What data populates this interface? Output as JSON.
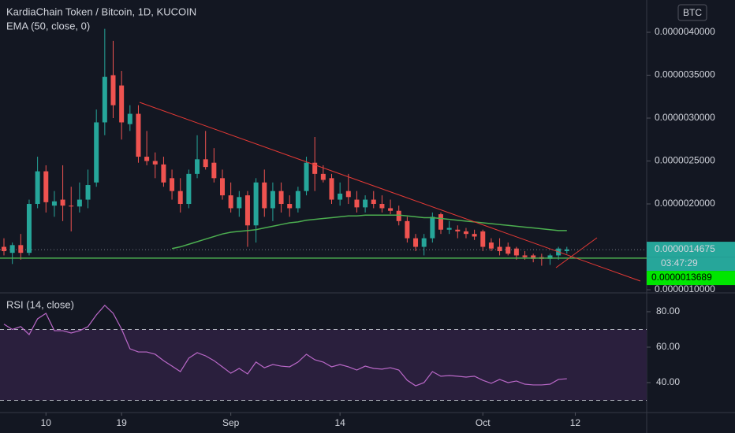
{
  "chart_data": [
    {
      "type": "candlestick",
      "title": "KardiaChain Token / Bitcoin, 1D, KUCOIN",
      "currency": "BTC",
      "open": [
        1.5e-06,
        1.43e-06,
        1.52e-06,
        1.43e-06,
        2e-06,
        2.38e-06,
        1.98e-06,
        2.05e-06,
        1.98e-06,
        1.97e-06,
        2.05e-06,
        2.25e-06,
        2.95e-06,
        3.5e-06,
        3.38e-06,
        2.93e-06,
        3.05e-06,
        2.55e-06,
        2.5e-06,
        2.46e-06,
        2.3e-06,
        2.15e-06,
        2e-06,
        2.35e-06,
        2.52e-06,
        2.48e-06,
        2.3e-06,
        2.1e-06,
        1.95e-06,
        2.1e-06,
        1.75e-06,
        2.25e-06,
        1.95e-06,
        2.15e-06,
        2e-06,
        1.95e-06,
        2.15e-06,
        2.48e-06,
        2.35e-06,
        2.3e-06,
        2.05e-06,
        2.15e-06,
        2.05e-06,
        1.96e-06,
        2.05e-06,
        2e-06,
        1.95e-06,
        1.92e-06,
        1.8e-06,
        1.6e-06,
        1.5e-06,
        1.6e-06,
        1.88e-06,
        1.7e-06,
        1.7e-06,
        1.68e-06,
        1.65e-06,
        1.68e-06,
        1.55e-06,
        1.5e-06,
        1.5e-06,
        1.48e-06,
        1.4e-06,
        1.4e-06,
        1.38e-06,
        1.36e-06,
        1.4e-06,
        1.45e-06
      ],
      "high": [
        1.6e-06,
        1.55e-06,
        1.65e-06,
        2.05e-06,
        2.55e-06,
        2.45e-06,
        2.15e-06,
        2.45e-06,
        2.2e-06,
        2.25e-06,
        2.4e-06,
        3.1e-06,
        4.04e-06,
        3.9e-06,
        3.55e-06,
        3.15e-06,
        3.15e-06,
        2.85e-06,
        2.6e-06,
        2.55e-06,
        2.4e-06,
        2.3e-06,
        2.4e-06,
        2.8e-06,
        2.85e-06,
        2.65e-06,
        2.4e-06,
        2.25e-06,
        2.15e-06,
        2.15e-06,
        2.3e-06,
        2.4e-06,
        2.25e-06,
        2.25e-06,
        2.1e-06,
        2.2e-06,
        2.55e-06,
        2.78e-06,
        2.45e-06,
        2.35e-06,
        2.25e-06,
        2.35e-06,
        2.15e-06,
        2.1e-06,
        2.15e-06,
        2.1e-06,
        2.05e-06,
        1.98e-06,
        1.85e-06,
        1.65e-06,
        1.65e-06,
        1.9e-06,
        1.9e-06,
        1.8e-06,
        1.75e-06,
        1.72e-06,
        1.7e-06,
        1.7e-06,
        1.6e-06,
        1.6e-06,
        1.55e-06,
        1.5e-06,
        1.45e-06,
        1.42e-06,
        1.42e-06,
        1.42e-06,
        1.5e-06,
        1.5e-06
      ],
      "low": [
        1.4e-06,
        1.3e-06,
        1.35e-06,
        1.4e-06,
        1.95e-06,
        1.9e-06,
        1.85e-06,
        1.8e-06,
        1.68e-06,
        1.9e-06,
        1.95e-06,
        2.2e-06,
        2.8e-06,
        3e-06,
        2.75e-06,
        2.85e-06,
        2.48e-06,
        2.45e-06,
        2.3e-06,
        2.2e-06,
        2.05e-06,
        1.9e-06,
        1.95e-06,
        2.3e-06,
        2.4e-06,
        2.25e-06,
        2.05e-06,
        1.9e-06,
        1.85e-06,
        1.5e-06,
        1.55e-06,
        1.85e-06,
        1.8e-06,
        1.9e-06,
        1.85e-06,
        1.9e-06,
        2.1e-06,
        2.15e-06,
        2.25e-06,
        2e-06,
        1.98e-06,
        2e-06,
        1.9e-06,
        1.9e-06,
        1.95e-06,
        1.9e-06,
        1.88e-06,
        1.75e-06,
        1.55e-06,
        1.45e-06,
        1.4e-06,
        1.55e-06,
        1.65e-06,
        1.65e-06,
        1.6e-06,
        1.6e-06,
        1.58e-06,
        1.45e-06,
        1.45e-06,
        1.4e-06,
        1.4e-06,
        1.35e-06,
        1.35e-06,
        1.32e-06,
        1.28e-06,
        1.29e-06,
        1.35e-06,
        1.42e-06
      ],
      "close": [
        1.45e-06,
        1.52e-06,
        1.43e-06,
        2e-06,
        2.38e-06,
        2.02e-06,
        2.03e-06,
        1.98e-06,
        1.97e-06,
        2.05e-06,
        2.22e-06,
        2.95e-06,
        3.48e-06,
        3.15e-06,
        2.95e-06,
        3.05e-06,
        2.55e-06,
        2.5e-06,
        2.46e-06,
        2.25e-06,
        2.15e-06,
        2e-06,
        2.35e-06,
        2.52e-06,
        2.43e-06,
        2.3e-06,
        2.1e-06,
        1.95e-06,
        2.08e-06,
        1.75e-06,
        2.25e-06,
        1.95e-06,
        2.15e-06,
        2e-06,
        1.95e-06,
        2.15e-06,
        2.48e-06,
        2.35e-06,
        2.28e-06,
        2.05e-06,
        2.12e-06,
        2.08e-06,
        1.96e-06,
        2.05e-06,
        2e-06,
        1.95e-06,
        1.92e-06,
        1.8e-06,
        1.6e-06,
        1.5e-06,
        1.6e-06,
        1.85e-06,
        1.7e-06,
        1.72e-06,
        1.68e-06,
        1.65e-06,
        1.62e-06,
        1.5e-06,
        1.48e-06,
        1.45e-06,
        1.42e-06,
        1.4e-06,
        1.38e-06,
        1.36e-06,
        1.36e-06,
        1.4e-06,
        1.48e-06,
        1.47e-06
      ],
      "up_color": "#26a69a",
      "down_color": "#ef5350",
      "series": [
        {
          "name": "EMA (50, close, 0)",
          "color": "#4caf50",
          "values": [
            null,
            null,
            null,
            null,
            null,
            null,
            null,
            null,
            null,
            null,
            null,
            null,
            null,
            null,
            null,
            null,
            null,
            null,
            null,
            null,
            1.48e-06,
            1.5e-06,
            1.53e-06,
            1.56e-06,
            1.59e-06,
            1.62e-06,
            1.65e-06,
            1.67e-06,
            1.68e-06,
            1.69e-06,
            1.7e-06,
            1.72e-06,
            1.74e-06,
            1.76e-06,
            1.78e-06,
            1.79e-06,
            1.81e-06,
            1.82e-06,
            1.83e-06,
            1.84e-06,
            1.85e-06,
            1.86e-06,
            1.86e-06,
            1.87e-06,
            1.87e-06,
            1.87e-06,
            1.87e-06,
            1.87e-06,
            1.86e-06,
            1.85e-06,
            1.84e-06,
            1.84e-06,
            1.83e-06,
            1.82e-06,
            1.81e-06,
            1.8e-06,
            1.79e-06,
            1.78e-06,
            1.77e-06,
            1.76e-06,
            1.75e-06,
            1.74e-06,
            1.73e-06,
            1.72e-06,
            1.71e-06,
            1.7e-06,
            1.69e-06,
            1.69e-06
          ]
        }
      ],
      "last_price": {
        "value": 1.4675e-06,
        "label": "0.0000014675"
      },
      "countdown": "03:47:29",
      "hline": {
        "value": 1.3689e-06,
        "label": "0.0000013689",
        "color": "#4caf50"
      },
      "xlim": [
        -0.47,
        76.5
      ],
      "ylim": [
        9.82e-07,
        4.376e-06
      ],
      "yticks": [
        {
          "value": 1e-06,
          "label": "0.0000010000"
        },
        {
          "value": 2e-06,
          "label": "0.0000020000"
        },
        {
          "value": 2.5e-06,
          "label": "0.0000025000"
        },
        {
          "value": 3e-06,
          "label": "0.0000030000"
        },
        {
          "value": 3.5e-06,
          "label": "0.0000035000"
        },
        {
          "value": 4e-06,
          "label": "0.0000040000"
        }
      ]
    },
    {
      "type": "line",
      "title": "RSI (14, close)",
      "color": "#ba68c8",
      "values": [
        73,
        70,
        71.6,
        67.1,
        76,
        79.1,
        69.3,
        69.3,
        68,
        69.3,
        71.6,
        78.2,
        83.6,
        79.1,
        70.2,
        59.1,
        57.3,
        57.3,
        56,
        52.4,
        49.3,
        46.2,
        53.8,
        56.9,
        55.1,
        52.4,
        48.9,
        45.3,
        48,
        44.9,
        51.6,
        48.4,
        50.2,
        49.3,
        48.9,
        51.6,
        56,
        52.9,
        51.6,
        48.9,
        50.2,
        48.9,
        47.1,
        49.3,
        48,
        47.6,
        48.4,
        47.1,
        41.3,
        38.2,
        40,
        46.2,
        43.6,
        44,
        43.6,
        43.1,
        43.6,
        41.3,
        39.6,
        41.8,
        40,
        40.9,
        39.1,
        38.7,
        38.7,
        39.1,
        41.8,
        42.2
      ],
      "bands": [
        70,
        30
      ],
      "xlim": [
        -0.47,
        76.5
      ],
      "ylim": [
        24,
        90.2
      ],
      "yticks": [
        {
          "value": 40,
          "label": "40.00"
        },
        {
          "value": 60,
          "label": "60.00"
        },
        {
          "value": 80,
          "label": "80.00"
        }
      ],
      "xticks": [
        {
          "value": 5,
          "label": "10"
        },
        {
          "value": 14,
          "label": "19"
        },
        {
          "value": 27,
          "label": "Sep"
        },
        {
          "value": 40,
          "label": "14"
        },
        {
          "value": 57,
          "label": "Oct"
        },
        {
          "value": 68,
          "label": "12"
        }
      ]
    }
  ]
}
